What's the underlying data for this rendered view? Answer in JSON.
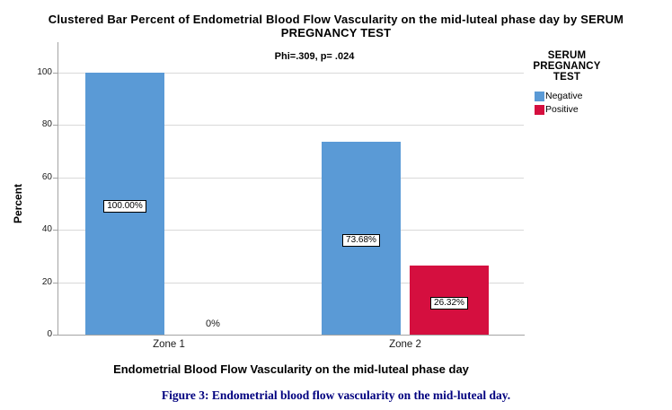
{
  "header": {
    "title_lines": [
      "Clustered Bar Percent of Endometrial Blood Flow Vascularity on the mid-luteal phase day by SERUM",
      "PREGNANCY TEST"
    ]
  },
  "annotation": "Phi=.309, p= .024",
  "legend": {
    "title_lines": [
      "SERUM",
      "PREGNANCY",
      "TEST"
    ],
    "items": [
      {
        "label": "Negative",
        "color": "#5a9ad6"
      },
      {
        "label": "Positive",
        "color": "#d50f3f"
      }
    ]
  },
  "chart_data": {
    "type": "bar",
    "title": "Clustered Bar Percent of Endometrial Blood Flow Vascularity on the mid-luteal phase day by SERUM PREGNANCY TEST",
    "categories": [
      "Zone 1",
      "Zone 2"
    ],
    "series": [
      {
        "name": "Negative",
        "color": "#5a9ad6",
        "values": [
          100,
          73.68
        ],
        "labels": [
          "100.00%",
          "73.68%"
        ]
      },
      {
        "name": "Positive",
        "color": "#d50f3f",
        "values": [
          0,
          26.32
        ],
        "labels": [
          "0%",
          "26.32%"
        ]
      }
    ],
    "annotation": "Phi=.309, p= .024",
    "xlabel": "Endometrial Blood Flow Vascularity on the mid-luteal phase day",
    "ylabel": "Percent",
    "ylim": [
      0,
      100
    ],
    "yticks": [
      0,
      20,
      40,
      60,
      80,
      100
    ],
    "grid": true,
    "legend_position": "right",
    "legend_title": "SERUM PREGNANCY TEST",
    "colors": {
      "grid": "#d9d9d9",
      "axis": "#a3a3a3",
      "caption_text": "#00007f"
    }
  },
  "caption": "Figure 3: Endometrial blood flow vascularity on the mid-luteal day."
}
